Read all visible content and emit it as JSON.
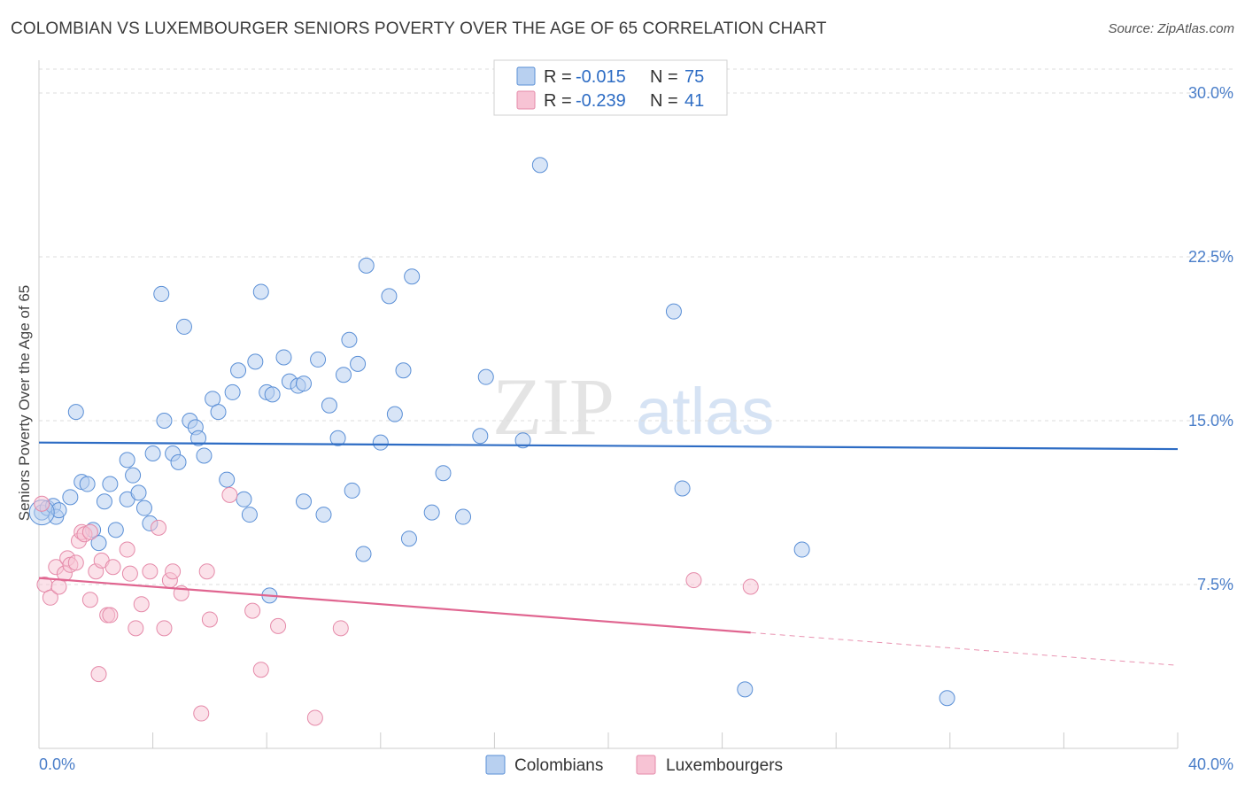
{
  "title": "COLOMBIAN VS LUXEMBOURGER SENIORS POVERTY OVER THE AGE OF 65 CORRELATION CHART",
  "source": "Source: ZipAtlas.com",
  "watermark": {
    "zip": "ZIP",
    "atlas": "atlas"
  },
  "colors": {
    "blue_fill": "#b8d0f0",
    "blue_stroke": "#5a8fd6",
    "blue_line": "#2d6cc4",
    "pink_fill": "#f7c3d4",
    "pink_stroke": "#e58aa9",
    "pink_line": "#e06590",
    "value_text": "#2d6cc4",
    "grid": "#dddddd"
  },
  "legend": {
    "r_label": "R =",
    "n_label": "N =",
    "rows": [
      {
        "series": "Colombians",
        "r": "-0.015",
        "n": "75"
      },
      {
        "series": "Luxembourgers",
        "r": "-0.239",
        "n": "41"
      }
    ]
  },
  "chart_data": {
    "type": "scatter",
    "title": "COLOMBIAN VS LUXEMBOURGER SENIORS POVERTY OVER THE AGE OF 65 CORRELATION CHART",
    "xlabel": "",
    "ylabel": "Seniors Poverty Over the Age of 65",
    "xlim": [
      0,
      40
    ],
    "ylim": [
      0,
      31.5
    ],
    "x_tick_labels": {
      "min": "0.0%",
      "max": "40.0%"
    },
    "y_ticks": [
      7.5,
      15.0,
      22.5,
      30.0
    ],
    "y_tick_labels": [
      "7.5%",
      "15.0%",
      "22.5%",
      "30.0%"
    ],
    "grid": "horizontal dashed",
    "legend_placement": "top-center and bottom",
    "series": [
      {
        "name": "Colombians",
        "trend": {
          "x": [
            0,
            40
          ],
          "y": [
            14.0,
            13.7
          ]
        },
        "points": [
          [
            0.1,
            10.8
          ],
          [
            0.3,
            11.0
          ],
          [
            0.5,
            11.1
          ],
          [
            0.6,
            10.6
          ],
          [
            0.7,
            10.9
          ],
          [
            1.1,
            11.5
          ],
          [
            1.3,
            15.4
          ],
          [
            1.5,
            12.2
          ],
          [
            1.7,
            12.1
          ],
          [
            1.9,
            10.0
          ],
          [
            2.1,
            9.4
          ],
          [
            2.3,
            11.3
          ],
          [
            2.5,
            12.1
          ],
          [
            2.7,
            10.0
          ],
          [
            3.1,
            11.4
          ],
          [
            3.1,
            13.2
          ],
          [
            3.3,
            12.5
          ],
          [
            3.5,
            11.7
          ],
          [
            3.7,
            11.0
          ],
          [
            3.9,
            10.3
          ],
          [
            4.0,
            13.5
          ],
          [
            4.3,
            20.8
          ],
          [
            4.4,
            15.0
          ],
          [
            4.7,
            13.5
          ],
          [
            4.9,
            13.1
          ],
          [
            5.1,
            19.3
          ],
          [
            5.3,
            15.0
          ],
          [
            5.5,
            14.7
          ],
          [
            5.6,
            14.2
          ],
          [
            5.8,
            13.4
          ],
          [
            6.1,
            16.0
          ],
          [
            6.3,
            15.4
          ],
          [
            6.6,
            12.3
          ],
          [
            6.8,
            16.3
          ],
          [
            7.0,
            17.3
          ],
          [
            7.2,
            11.4
          ],
          [
            7.4,
            10.7
          ],
          [
            7.6,
            17.7
          ],
          [
            7.8,
            20.9
          ],
          [
            8.0,
            16.3
          ],
          [
            8.2,
            16.2
          ],
          [
            8.6,
            17.9
          ],
          [
            8.8,
            16.8
          ],
          [
            9.1,
            16.6
          ],
          [
            9.3,
            16.7
          ],
          [
            9.3,
            11.3
          ],
          [
            9.8,
            17.8
          ],
          [
            10.0,
            10.7
          ],
          [
            10.2,
            15.7
          ],
          [
            10.5,
            14.2
          ],
          [
            10.7,
            17.1
          ],
          [
            10.9,
            18.7
          ],
          [
            11.0,
            11.8
          ],
          [
            11.2,
            17.6
          ],
          [
            11.4,
            8.9
          ],
          [
            11.5,
            22.1
          ],
          [
            12.0,
            14.0
          ],
          [
            12.3,
            20.7
          ],
          [
            12.5,
            15.3
          ],
          [
            12.8,
            17.3
          ],
          [
            13.0,
            9.6
          ],
          [
            13.1,
            21.6
          ],
          [
            13.8,
            10.8
          ],
          [
            14.2,
            12.6
          ],
          [
            14.9,
            10.6
          ],
          [
            15.5,
            14.3
          ],
          [
            15.7,
            17.0
          ],
          [
            17.0,
            14.1
          ],
          [
            17.6,
            26.7
          ],
          [
            22.3,
            20.0
          ],
          [
            22.6,
            11.9
          ],
          [
            24.8,
            2.7
          ],
          [
            8.1,
            7.0
          ],
          [
            26.8,
            9.1
          ],
          [
            31.9,
            2.3
          ]
        ]
      },
      {
        "name": "Luxembourgers",
        "trend": {
          "x": [
            0,
            25
          ],
          "y": [
            7.8,
            5.3
          ]
        },
        "trend_extension": {
          "x": [
            25,
            40
          ],
          "y": [
            5.3,
            3.8
          ]
        },
        "points": [
          [
            0.2,
            7.5
          ],
          [
            0.4,
            6.9
          ],
          [
            0.6,
            8.3
          ],
          [
            0.7,
            7.4
          ],
          [
            0.9,
            8.0
          ],
          [
            1.0,
            8.7
          ],
          [
            1.1,
            8.4
          ],
          [
            1.3,
            8.5
          ],
          [
            1.4,
            9.5
          ],
          [
            1.5,
            9.9
          ],
          [
            1.6,
            9.8
          ],
          [
            1.8,
            9.9
          ],
          [
            1.8,
            6.8
          ],
          [
            2.0,
            8.1
          ],
          [
            2.1,
            3.4
          ],
          [
            2.2,
            8.6
          ],
          [
            2.4,
            6.1
          ],
          [
            2.5,
            6.1
          ],
          [
            2.6,
            8.3
          ],
          [
            3.1,
            9.1
          ],
          [
            3.2,
            8.0
          ],
          [
            3.4,
            5.5
          ],
          [
            3.6,
            6.6
          ],
          [
            3.9,
            8.1
          ],
          [
            4.2,
            10.1
          ],
          [
            4.4,
            5.5
          ],
          [
            4.6,
            7.7
          ],
          [
            4.7,
            8.1
          ],
          [
            5.0,
            7.1
          ],
          [
            5.7,
            1.6
          ],
          [
            5.9,
            8.1
          ],
          [
            6.0,
            5.9
          ],
          [
            6.7,
            11.6
          ],
          [
            7.5,
            6.3
          ],
          [
            7.8,
            3.6
          ],
          [
            8.4,
            5.6
          ],
          [
            9.7,
            1.4
          ],
          [
            10.6,
            5.5
          ],
          [
            23.0,
            7.7
          ],
          [
            25.0,
            7.4
          ],
          [
            0.1,
            11.2
          ]
        ]
      }
    ]
  }
}
